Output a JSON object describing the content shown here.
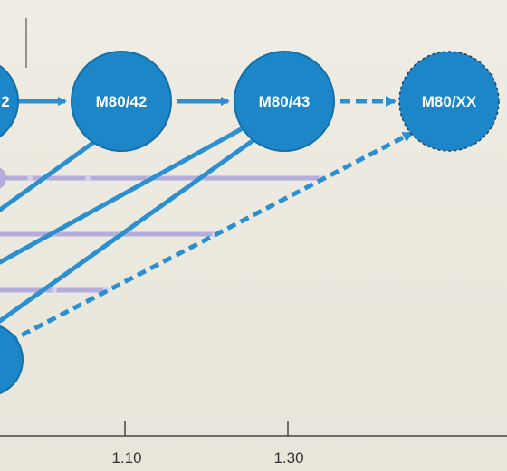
{
  "colors": {
    "node": "#1c86c8",
    "node_stroke": "#1670a8",
    "flow": "#2b8fd0",
    "lavender": "#b5addb",
    "axis": "#444444",
    "background": "#ece9df"
  },
  "nodes": {
    "left_partial": {
      "label": "2"
    },
    "m80_42": {
      "label": "M80/42"
    },
    "m80_43": {
      "label": "M80/43"
    },
    "m80_xx": {
      "label": "M80/XX"
    }
  },
  "axis": {
    "ticks": [
      {
        "label": "1.10"
      },
      {
        "label": "1.30"
      }
    ]
  }
}
